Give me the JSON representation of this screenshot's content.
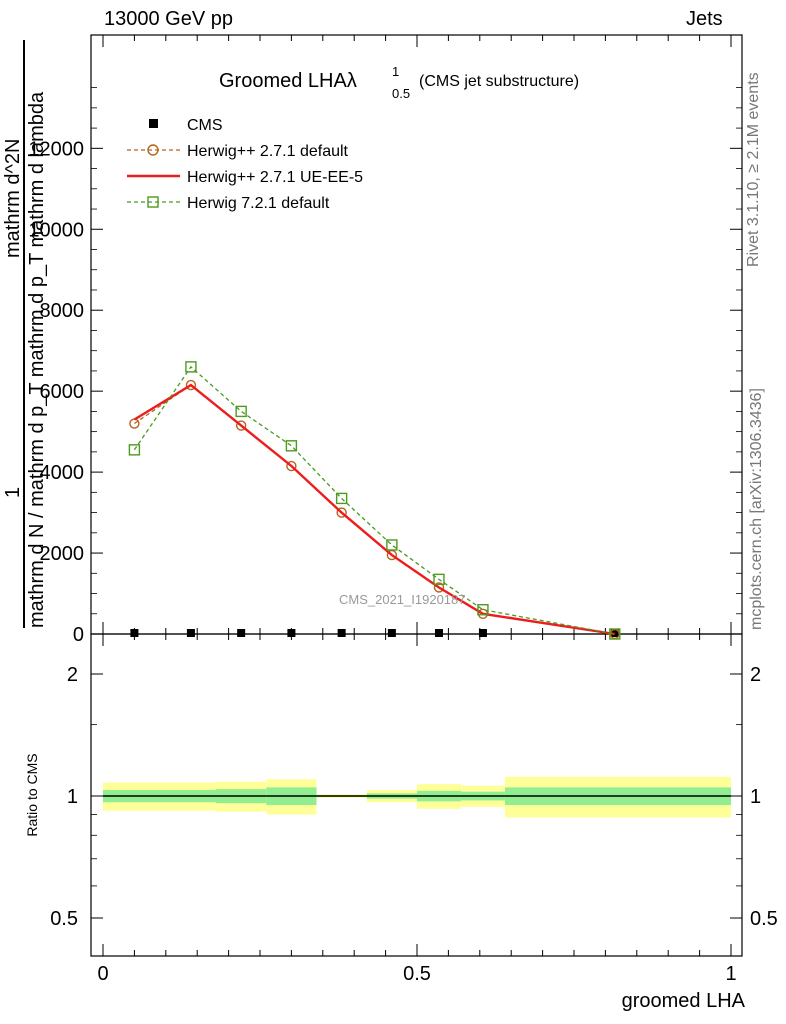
{
  "header": {
    "left": "13000 GeV pp",
    "right": "Jets"
  },
  "side_labels": {
    "rivet": "Rivet 3.1.10, ≥ 2.1M events",
    "mcplots": "mcplots.cern.ch [arXiv:1306.3436]"
  },
  "chart_data": {
    "type": "line",
    "title": "Groomed LHAλ",
    "title_sup": "1",
    "title_sub": "0.5",
    "title_note": "(CMS jet substructure)",
    "watermark": "CMS_2021_I1920187",
    "xlabel": "groomed LHA",
    "ylabel_top": "1",
    "ylabel_numerator": "mathrm d^2N",
    "ylabel_denominator": "mathrm d N / mathrm d p_T mathrm d p_T mathrm d lambda",
    "xlim": [
      0,
      1
    ],
    "ylim": [
      0,
      14800
    ],
    "x_ticks": [
      "0",
      "0.5",
      "1"
    ],
    "y_ticks": [
      "0",
      "2000",
      "4000",
      "6000",
      "8000",
      "10000",
      "12000"
    ],
    "x": [
      0.05,
      0.14,
      0.22,
      0.3,
      0.38,
      0.46,
      0.535,
      0.605,
      0.815
    ],
    "series": [
      {
        "name": "CMS",
        "color": "#000000",
        "style": "marker",
        "values": [
          0,
          0,
          0,
          0,
          0,
          0,
          0,
          0,
          0
        ]
      },
      {
        "name": "Herwig++ 2.7.1 default",
        "color": "#b8621b",
        "style": "dashed-circle",
        "values": [
          5200,
          6150,
          5150,
          4150,
          3000,
          1950,
          1150,
          500,
          0
        ]
      },
      {
        "name": "Herwig++ 2.7.1 UE-EE-5",
        "color": "#ee1c1c",
        "style": "solid",
        "values": [
          5300,
          6150,
          5150,
          4150,
          3000,
          1950,
          1150,
          500,
          0
        ]
      },
      {
        "name": "Herwig 7.2.1 default",
        "color": "#4c9a1f",
        "style": "dashed-square",
        "values": [
          4550,
          6600,
          5500,
          4650,
          3350,
          2200,
          1350,
          600,
          0
        ]
      }
    ],
    "ratio": {
      "ylabel": "Ratio to CMS",
      "yticks": [
        "0.5",
        "1",
        "2"
      ],
      "edges": [
        0,
        0.18,
        0.26,
        0.34,
        0.42,
        0.5,
        0.57,
        0.64,
        1.0
      ],
      "band_inner": [
        0.035,
        0.04,
        0.05,
        0.005,
        0.015,
        0.03,
        0.025,
        0.05,
        0.05
      ],
      "band_outer": [
        0.08,
        0.085,
        0.1,
        0.01,
        0.035,
        0.07,
        0.06,
        0.115,
        0.115
      ],
      "band_inner_color": "#90ee90",
      "band_outer_color": "#ffff99"
    }
  }
}
